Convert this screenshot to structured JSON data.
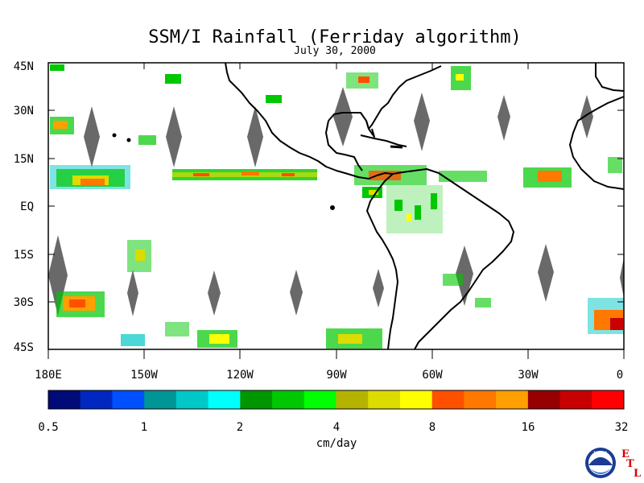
{
  "title": "SSM/I Rainfall (Ferriday algorithm)",
  "subtitle": "July 30, 2000",
  "lat_labels": [
    "45N",
    "30N",
    "15N",
    "EQ",
    "15S",
    "30S",
    "45S"
  ],
  "lon_labels": [
    "180E",
    "150W",
    "120W",
    "90W",
    "60W",
    "30W",
    "0"
  ],
  "colorbar": {
    "unit": "cm/day",
    "tick_labels": [
      "0.5",
      "1",
      "2",
      "4",
      "8",
      "16",
      "32"
    ],
    "colors": [
      "#000a78",
      "#0028c0",
      "#0050ff",
      "#009696",
      "#00c8c8",
      "#00ffff",
      "#009600",
      "#00c800",
      "#00ff00",
      "#b4b400",
      "#dcdc00",
      "#ffff00",
      "#ff5000",
      "#ff7800",
      "#ffa000",
      "#960000",
      "#c80000",
      "#ff0000"
    ]
  },
  "logos": {
    "noaa": "NOAA",
    "etl_letters": [
      "E",
      "T",
      "L"
    ]
  },
  "colors": {
    "coast": "#000000",
    "swath_gap": "#696969"
  }
}
